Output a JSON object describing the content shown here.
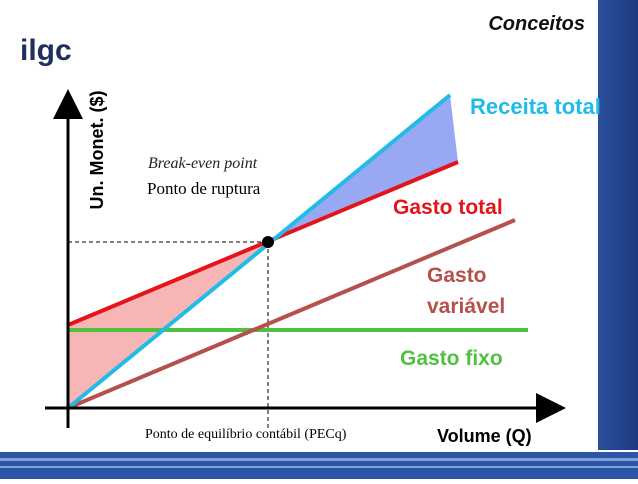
{
  "header": {
    "logo": "ilgc",
    "title": "Conceitos"
  },
  "diagram": {
    "y_axis_label": "Un. Monet. ($)",
    "x_axis_label": "Volume (Q)",
    "break_even_label": "Break-even point",
    "break_even_label_pt": "Ponto de ruptura",
    "break_even_volume_label": "Ponto de equilíbrio contábil (PECq)",
    "lines": [
      {
        "name": "Receita total"
      },
      {
        "name": "Gasto total"
      },
      {
        "name": "Gasto variável",
        "name_lines": [
          "Gasto",
          "variável"
        ]
      },
      {
        "name": "Gasto fixo"
      }
    ]
  }
}
